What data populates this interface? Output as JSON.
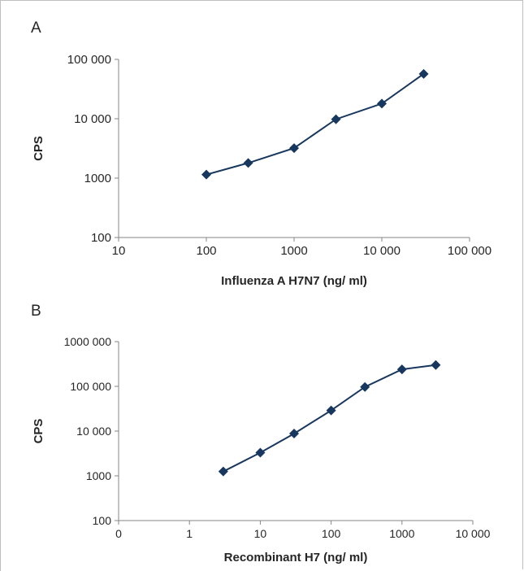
{
  "chart_data": [
    {
      "type": "line",
      "panel_label": "A",
      "xscale": "log",
      "yscale": "log",
      "xlim": [
        10,
        100000
      ],
      "ylim": [
        100,
        100000
      ],
      "xticks": [
        "10",
        "100",
        "1000",
        "10 000",
        "100 000"
      ],
      "yticks": [
        "100",
        "1000",
        "10 000",
        "100 000"
      ],
      "xlabel": "Influenza A H7N7 (ng/ ml)",
      "ylabel": "CPS",
      "grid": false,
      "legend": "none",
      "series": [
        {
          "marker": "diamond",
          "color": "#17375e",
          "x": [
            100,
            300,
            1000,
            3000,
            10000,
            30000
          ],
          "y": [
            1150,
            1800,
            3200,
            9800,
            18000,
            57000
          ]
        }
      ]
    },
    {
      "type": "line",
      "panel_label": "B",
      "xscale": "log",
      "yscale": "log",
      "xlim": [
        0.1,
        10000
      ],
      "ylim": [
        100,
        1000000
      ],
      "xticks": [
        "0",
        "1",
        "10",
        "100",
        "1000",
        "10 000"
      ],
      "yticks": [
        "100",
        "1000",
        "10 000",
        "100 000",
        "1000 000"
      ],
      "xlabel": "Recombinant H7 (ng/ ml)",
      "ylabel": "CPS",
      "grid": false,
      "legend": "none",
      "series": [
        {
          "marker": "diamond",
          "color": "#17375e",
          "x": [
            3,
            10,
            30,
            100,
            300,
            1000,
            3000
          ],
          "y": [
            1250,
            3300,
            8800,
            29000,
            97000,
            240000,
            300000
          ]
        }
      ]
    }
  ]
}
